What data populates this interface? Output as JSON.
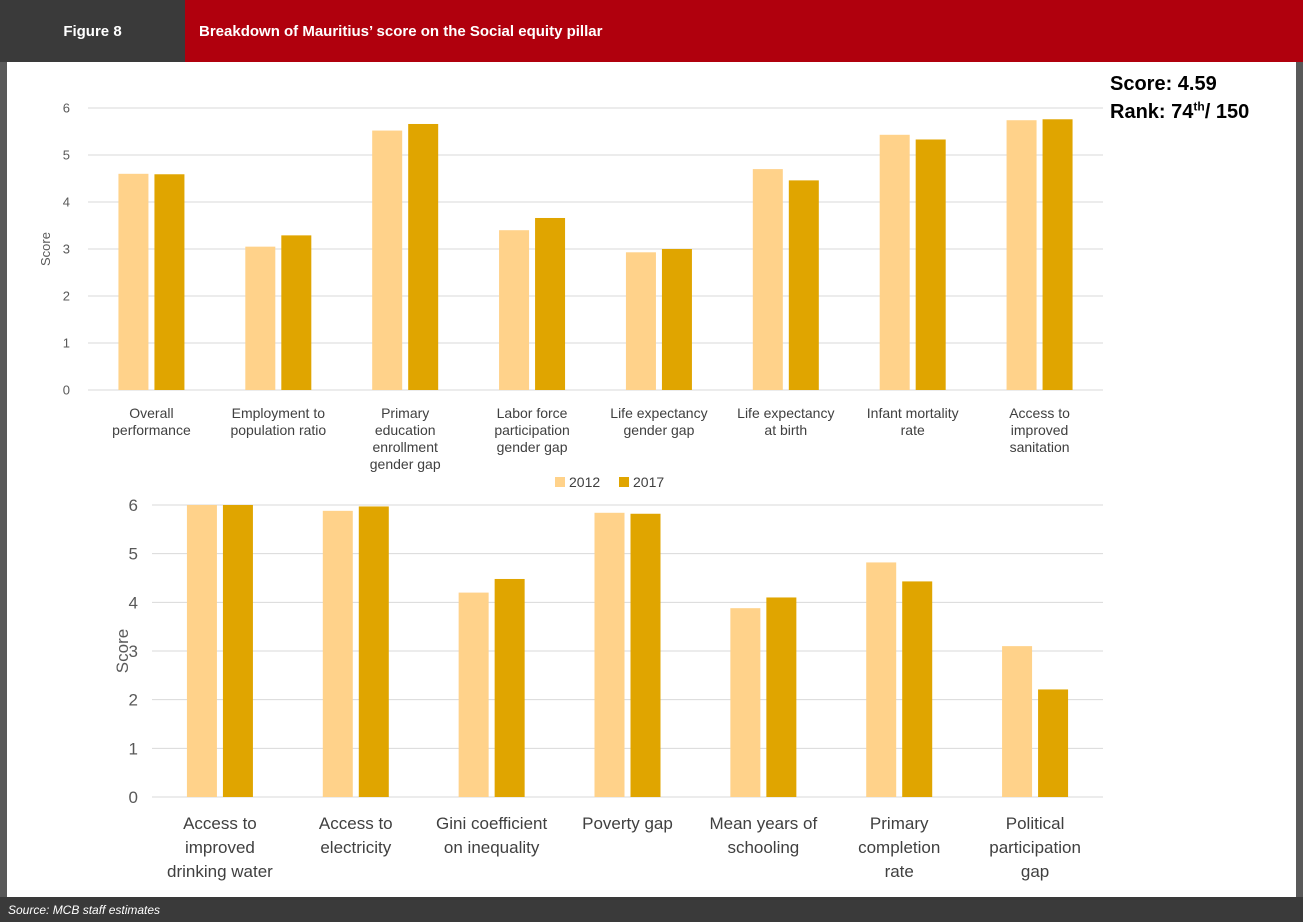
{
  "header": {
    "figure_label": "Figure 8",
    "title": "Breakdown of Mauritius’ score on the Social equity pillar",
    "bg_figure": "#3a3a3a",
    "bg_title": "#b0000d"
  },
  "summary": {
    "score_label": "Score: 4.59",
    "rank_prefix": "Rank: 74",
    "rank_sup": "th",
    "rank_suffix": "/ 150"
  },
  "source": "Source: MCB staff estimates",
  "colors": {
    "s2012": "#ffd28a",
    "s2017": "#e0a500",
    "grid": "#d9d9d9",
    "frame": "#595959"
  },
  "chart_data": [
    {
      "type": "bar",
      "ylabel": "Score",
      "ylim": [
        0,
        6
      ],
      "yticks": [
        "0",
        "1",
        "2",
        "3",
        "4",
        "5",
        "6"
      ],
      "categories": [
        [
          "Overall",
          "performance"
        ],
        [
          "Employment to",
          "population ratio"
        ],
        [
          "Primary",
          "education",
          "enrollment",
          "gender gap"
        ],
        [
          "Labor force",
          "participation",
          "gender gap"
        ],
        [
          "Life expectancy",
          "gender gap"
        ],
        [
          "Life expectancy",
          "at birth"
        ],
        [
          "Infant mortality",
          "rate"
        ],
        [
          "Access to",
          "improved",
          "sanitation"
        ]
      ],
      "series": [
        {
          "name": "2012",
          "values": [
            4.6,
            3.05,
            5.52,
            3.4,
            2.93,
            4.7,
            5.43,
            5.74
          ]
        },
        {
          "name": "2017",
          "values": [
            4.59,
            3.29,
            5.66,
            3.66,
            3.0,
            4.46,
            5.33,
            5.76
          ]
        }
      ],
      "legend": "bottom"
    },
    {
      "type": "bar",
      "ylabel": "Score",
      "ylim": [
        0,
        6
      ],
      "yticks": [
        "0",
        "1",
        "2",
        "3",
        "4",
        "5",
        "6"
      ],
      "categories": [
        [
          "Access to",
          "improved",
          "drinking water"
        ],
        [
          "Access to",
          "electricity"
        ],
        [
          "Gini coefficient",
          "on inequality"
        ],
        [
          "Poverty gap"
        ],
        [
          "Mean years of",
          "schooling"
        ],
        [
          "Primary",
          "completion",
          "rate"
        ],
        [
          "Political",
          "participation",
          "gap"
        ]
      ],
      "series": [
        {
          "name": "2012",
          "values": [
            6.0,
            5.88,
            4.2,
            5.84,
            3.88,
            4.82,
            3.1
          ]
        },
        {
          "name": "2017",
          "values": [
            6.0,
            5.97,
            4.48,
            5.82,
            4.1,
            4.43,
            2.21
          ]
        }
      ]
    }
  ]
}
